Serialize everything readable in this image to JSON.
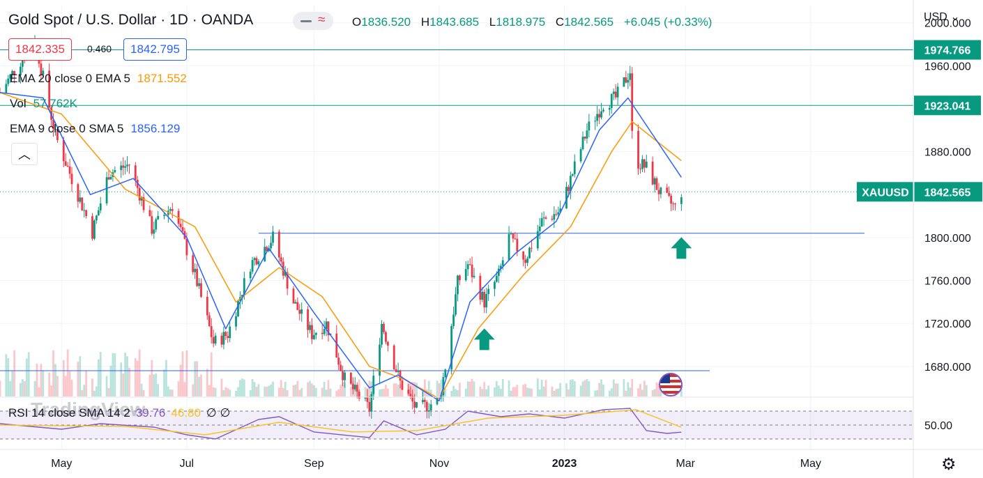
{
  "header": {
    "title": "Gold Spot / U.S. Dollar · 1D · OANDA",
    "ohlc": [
      {
        "k": "O",
        "v": "1836.520"
      },
      {
        "k": "H",
        "v": "1843.685"
      },
      {
        "k": "L",
        "v": "1818.975"
      },
      {
        "k": "C",
        "v": "1842.565"
      }
    ],
    "change": "+6.045 (+0.33%)",
    "bid": "1842.335",
    "spread": "0.460",
    "ask": "1842.795",
    "currency": "USD"
  },
  "indicators": {
    "ema20": {
      "label": "EMA 20 close 0 EMA 5",
      "value": "1871.552",
      "color": "#ff9800"
    },
    "vol": {
      "label": "Vol",
      "value": "57.762K",
      "color": "#089981"
    },
    "ema9": {
      "label": "EMA 9 close 0 SMA 5",
      "value": "1856.129",
      "color": "#2962ff"
    },
    "rsi": {
      "label": "RSI 14 close SMA 14 2",
      "value1": "39.76",
      "value2": "46.80",
      "value3": "∅ ∅"
    }
  },
  "watermark": "TradingView",
  "chart_data": {
    "type": "line",
    "title": "Gold Spot / U.S. Dollar · 1D · OANDA",
    "ylim": [
      1652,
      2016
    ],
    "y_ticks": [
      "2000.000",
      "1960.000",
      "1880.000",
      "1800.000",
      "1760.000",
      "1720.000",
      "1680.000"
    ],
    "x_ticks": [
      "May",
      "Jul",
      "Sep",
      "Nov",
      "2023",
      "Mar",
      "May"
    ],
    "horizontal_levels": [
      {
        "value": 1974.766,
        "label": "1974.766",
        "style": "label-box"
      },
      {
        "value": 1923.041,
        "label": "1923.041",
        "style": "label-box"
      },
      {
        "value": 1804,
        "label": ""
      },
      {
        "value": 1676,
        "label": ""
      }
    ],
    "last_price": {
      "symbol": "XAUUSD",
      "value": 1842.565,
      "label": "1842.565"
    },
    "price_path": [
      {
        "x": "2022-04-01",
        "y": 1935
      },
      {
        "x": "2022-04-18",
        "y": 1985
      },
      {
        "x": "2022-04-28",
        "y": 1895
      },
      {
        "x": "2022-05-16",
        "y": 1805
      },
      {
        "x": "2022-05-24",
        "y": 1860
      },
      {
        "x": "2022-06-03",
        "y": 1868
      },
      {
        "x": "2022-06-14",
        "y": 1808
      },
      {
        "x": "2022-06-24",
        "y": 1830
      },
      {
        "x": "2022-07-05",
        "y": 1765
      },
      {
        "x": "2022-07-14",
        "y": 1702
      },
      {
        "x": "2022-07-21",
        "y": 1710
      },
      {
        "x": "2022-08-01",
        "y": 1775
      },
      {
        "x": "2022-08-12",
        "y": 1800
      },
      {
        "x": "2022-08-22",
        "y": 1740
      },
      {
        "x": "2022-08-31",
        "y": 1710
      },
      {
        "x": "2022-09-07",
        "y": 1720
      },
      {
        "x": "2022-09-16",
        "y": 1668
      },
      {
        "x": "2022-09-28",
        "y": 1640
      },
      {
        "x": "2022-10-04",
        "y": 1720
      },
      {
        "x": "2022-10-13",
        "y": 1665
      },
      {
        "x": "2022-10-21",
        "y": 1640
      },
      {
        "x": "2022-11-01",
        "y": 1648
      },
      {
        "x": "2022-11-04",
        "y": 1680
      },
      {
        "x": "2022-11-10",
        "y": 1758
      },
      {
        "x": "2022-11-15",
        "y": 1775
      },
      {
        "x": "2022-11-23",
        "y": 1740
      },
      {
        "x": "2022-11-30",
        "y": 1765
      },
      {
        "x": "2022-12-05",
        "y": 1800
      },
      {
        "x": "2022-12-13",
        "y": 1780
      },
      {
        "x": "2022-12-21",
        "y": 1815
      },
      {
        "x": "2022-12-30",
        "y": 1825
      },
      {
        "x": "2023-01-05",
        "y": 1860
      },
      {
        "x": "2023-01-12",
        "y": 1900
      },
      {
        "x": "2023-01-20",
        "y": 1925
      },
      {
        "x": "2023-01-26",
        "y": 1930
      },
      {
        "x": "2023-02-02",
        "y": 1955
      },
      {
        "x": "2023-02-03",
        "y": 1895
      },
      {
        "x": "2023-02-06",
        "y": 1870
      },
      {
        "x": "2023-02-10",
        "y": 1865
      },
      {
        "x": "2023-02-17",
        "y": 1840
      },
      {
        "x": "2023-02-24",
        "y": 1828
      },
      {
        "x": "2023-02-27",
        "y": 1842.565
      }
    ],
    "series": [
      {
        "name": "EMA 20 close 0 EMA 5",
        "color": "#ff9800",
        "values": [
          {
            "x": "2022-04-01",
            "y": 1935
          },
          {
            "x": "2022-05-01",
            "y": 1915
          },
          {
            "x": "2022-06-01",
            "y": 1845
          },
          {
            "x": "2022-07-05",
            "y": 1810
          },
          {
            "x": "2022-07-25",
            "y": 1740
          },
          {
            "x": "2022-08-15",
            "y": 1772
          },
          {
            "x": "2022-09-05",
            "y": 1745
          },
          {
            "x": "2022-09-28",
            "y": 1680
          },
          {
            "x": "2022-10-15",
            "y": 1668
          },
          {
            "x": "2022-11-01",
            "y": 1650
          },
          {
            "x": "2022-11-20",
            "y": 1715
          },
          {
            "x": "2022-12-12",
            "y": 1765
          },
          {
            "x": "2023-01-04",
            "y": 1810
          },
          {
            "x": "2023-01-24",
            "y": 1880
          },
          {
            "x": "2023-02-03",
            "y": 1908
          },
          {
            "x": "2023-02-27",
            "y": 1871.552
          }
        ]
      },
      {
        "name": "EMA 9 close 0 SMA 5",
        "color": "#2962ff",
        "values": [
          {
            "x": "2022-04-01",
            "y": 1935
          },
          {
            "x": "2022-04-22",
            "y": 1930
          },
          {
            "x": "2022-05-15",
            "y": 1840
          },
          {
            "x": "2022-06-05",
            "y": 1855
          },
          {
            "x": "2022-07-01",
            "y": 1800
          },
          {
            "x": "2022-07-20",
            "y": 1715
          },
          {
            "x": "2022-08-10",
            "y": 1790
          },
          {
            "x": "2022-09-01",
            "y": 1730
          },
          {
            "x": "2022-09-28",
            "y": 1660
          },
          {
            "x": "2022-10-12",
            "y": 1672
          },
          {
            "x": "2022-11-01",
            "y": 1648
          },
          {
            "x": "2022-11-16",
            "y": 1740
          },
          {
            "x": "2022-12-08",
            "y": 1785
          },
          {
            "x": "2022-12-28",
            "y": 1815
          },
          {
            "x": "2023-01-18",
            "y": 1900
          },
          {
            "x": "2023-02-01",
            "y": 1930
          },
          {
            "x": "2023-02-27",
            "y": 1856.129
          }
        ]
      }
    ],
    "rsi": {
      "levels": [
        70,
        50,
        30
      ],
      "level_label": "50.00",
      "values": [
        {
          "x": "2022-04-01",
          "y": 52
        },
        {
          "x": "2022-05-01",
          "y": 44
        },
        {
          "x": "2022-05-20",
          "y": 52
        },
        {
          "x": "2022-06-15",
          "y": 47
        },
        {
          "x": "2022-07-01",
          "y": 36
        },
        {
          "x": "2022-07-15",
          "y": 30
        },
        {
          "x": "2022-08-05",
          "y": 58
        },
        {
          "x": "2022-08-15",
          "y": 62
        },
        {
          "x": "2022-09-01",
          "y": 40
        },
        {
          "x": "2022-09-28",
          "y": 32
        },
        {
          "x": "2022-10-05",
          "y": 56
        },
        {
          "x": "2022-10-21",
          "y": 36
        },
        {
          "x": "2022-11-04",
          "y": 44
        },
        {
          "x": "2022-11-15",
          "y": 70
        },
        {
          "x": "2022-12-01",
          "y": 62
        },
        {
          "x": "2022-12-15",
          "y": 66
        },
        {
          "x": "2023-01-01",
          "y": 60
        },
        {
          "x": "2023-01-20",
          "y": 72
        },
        {
          "x": "2023-02-02",
          "y": 74
        },
        {
          "x": "2023-02-10",
          "y": 42
        },
        {
          "x": "2023-02-20",
          "y": 38
        },
        {
          "x": "2023-02-27",
          "y": 39.76
        }
      ],
      "sma_values": [
        {
          "x": "2022-04-01",
          "y": 50
        },
        {
          "x": "2022-06-01",
          "y": 48
        },
        {
          "x": "2022-07-10",
          "y": 36
        },
        {
          "x": "2022-08-15",
          "y": 54
        },
        {
          "x": "2022-09-20",
          "y": 40
        },
        {
          "x": "2022-10-21",
          "y": 42
        },
        {
          "x": "2022-11-25",
          "y": 60
        },
        {
          "x": "2023-01-01",
          "y": 64
        },
        {
          "x": "2023-02-05",
          "y": 72
        },
        {
          "x": "2023-02-27",
          "y": 46.8
        }
      ]
    },
    "annotations": [
      {
        "type": "arrow-up",
        "x": "2022-11-23",
        "y": 1705,
        "color": "#089981"
      },
      {
        "type": "arrow-up",
        "x": "2023-02-27",
        "y": 1790,
        "color": "#089981"
      }
    ],
    "colors": {
      "up": "#089981",
      "down": "#f23645",
      "rsi": "#7e57c2",
      "rsi_sma": "#f7c325",
      "level": "#2962ff"
    }
  }
}
